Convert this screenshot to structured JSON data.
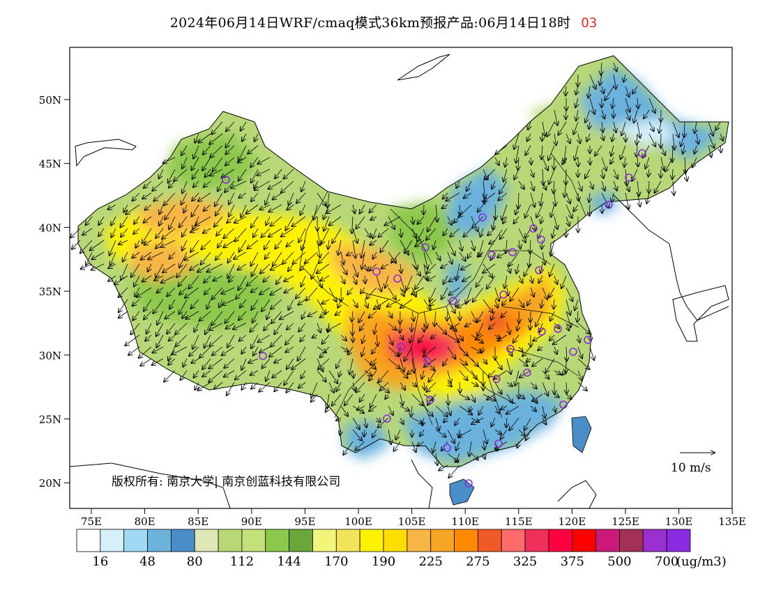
{
  "title": {
    "main": "2024年06月14日WRF/cmaq模式36km预报产品:06月14日18时",
    "pollutant": "O3",
    "pollutant_color": "#e03030"
  },
  "map": {
    "lat_labels": [
      "50N",
      "45N",
      "40N",
      "35N",
      "30N",
      "25N",
      "20N"
    ],
    "lon_labels": [
      "75E",
      "80E",
      "85E",
      "90E",
      "95E",
      "100E",
      "105E",
      "110E",
      "115E",
      "120E",
      "125E",
      "130E",
      "135E"
    ],
    "copyright": "版权所有: 南京大学| 南京创蓝科技有限公司",
    "vector_reference_label": "10 m/s",
    "station_marker_color": "#8a2be2"
  },
  "colorbar": {
    "colors": [
      "#ffffff",
      "#d6f0fb",
      "#9fd9f4",
      "#6bb2dd",
      "#4a8ec7",
      "#dde8b6",
      "#b8d878",
      "#c3e07a",
      "#8cc84b",
      "#6aa63a",
      "#f1f57a",
      "#f2e45a",
      "#fff200",
      "#ffde00",
      "#f7b545",
      "#f6a623",
      "#ff8a00",
      "#f05a28",
      "#ff6a6a",
      "#f0305a",
      "#ff0040",
      "#ff0000",
      "#cc1a7a",
      "#a33055",
      "#9b30d0",
      "#8a2be2"
    ],
    "labels": [
      "16",
      "48",
      "80",
      "112",
      "144",
      "170",
      "190",
      "225",
      "275",
      "325",
      "375",
      "500",
      "700"
    ],
    "unit": "(ug/m3)"
  }
}
